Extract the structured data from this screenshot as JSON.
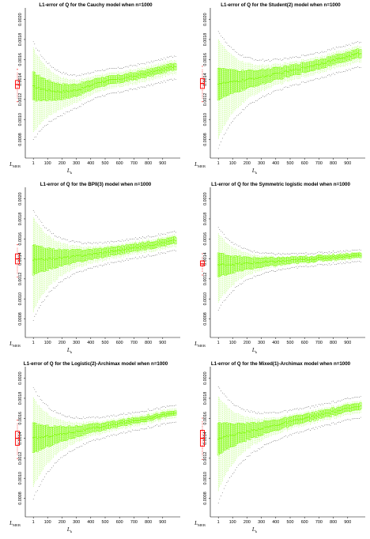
{
  "chart_data": [
    {
      "type": "boxplot",
      "title": "L1-error of Q for the Cauchy model when n=1000",
      "xlabel_main": "L",
      "xlabel_sub": "k",
      "ref_label_main": "L",
      "ref_label_sub": "MEB",
      "ylim": [
        0.00063,
        0.0021
      ],
      "yticks": [
        "0.0008",
        "0.0010",
        "0.0012",
        "0.0014",
        "0.0016",
        "0.0018",
        "0.0020"
      ],
      "yticks_values": [
        0.0008,
        0.001,
        0.0012,
        0.0014,
        0.0016,
        0.0018,
        0.002
      ],
      "xticks": [
        "1",
        "100",
        "200",
        "300",
        "400",
        "500",
        "600",
        "700",
        "800",
        "900"
      ],
      "ref_box": {
        "median": 0.00135,
        "q1": 0.00131,
        "q3": 0.00139,
        "low": 0.00121,
        "high": 0.00147
      },
      "series": {
        "median_start": 0.00133,
        "median_end": 0.00154,
        "curve": 2.0,
        "iqr_start": 0.00028,
        "iqr_end": 6e-05,
        "wh_start": 0.00085,
        "wh_end": 0.00014,
        "out_start": 6e-05,
        "out_end": 4e-05,
        "shape": "dip"
      }
    },
    {
      "type": "boxplot",
      "title": "L1-error of Q for the Student(2) model when n=1000",
      "xlabel_main": "L",
      "xlabel_sub": "k",
      "ref_label_main": "L",
      "ref_label_sub": "MEB",
      "ylim": [
        0.00063,
        0.0021
      ],
      "yticks": [
        "0.0008",
        "0.0010",
        "0.0012",
        "0.0014",
        "0.0016",
        "0.0018",
        "0.0020"
      ],
      "yticks_values": [
        0.0008,
        0.001,
        0.0012,
        0.0014,
        0.0016,
        0.0018,
        0.002
      ],
      "xticks": [
        "1",
        "100",
        "200",
        "300",
        "400",
        "500",
        "600",
        "700",
        "800",
        "900"
      ],
      "ref_box": {
        "median": 0.00136,
        "q1": 0.00131,
        "q3": 0.00141,
        "low": 0.00121,
        "high": 0.0015
      },
      "series": {
        "median_start": 0.00136,
        "median_end": 0.00167,
        "curve": 1.3,
        "iqr_start": 0.00032,
        "iqr_end": 8e-05,
        "wh_start": 0.001,
        "wh_end": 0.00016,
        "out_start": 8e-05,
        "out_end": 4e-05,
        "shape": "rise"
      }
    },
    {
      "type": "boxplot",
      "title": "L1-error of Q for the BPII(3) model when n=1000",
      "xlabel_main": "L",
      "xlabel_sub": "k",
      "ref_label_main": "L",
      "ref_label_sub": "MEB",
      "ylim": [
        0.00063,
        0.0021
      ],
      "yticks": [
        "0.0008",
        "0.0010",
        "0.0012",
        "0.0014",
        "0.0016",
        "0.0018",
        "0.0020"
      ],
      "yticks_values": [
        0.0008,
        0.001,
        0.0012,
        0.0014,
        0.0016,
        0.0018,
        0.002
      ],
      "xticks": [
        "1",
        "100",
        "200",
        "300",
        "400",
        "500",
        "600",
        "700",
        "800",
        "900"
      ],
      "ref_box": {
        "median": 0.0014,
        "q1": 0.00135,
        "q3": 0.00145,
        "low": 0.00125,
        "high": 0.00151
      },
      "series": {
        "median_start": 0.00139,
        "median_end": 0.00159,
        "curve": 1.4,
        "iqr_start": 0.0003,
        "iqr_end": 6e-05,
        "wh_start": 0.00095,
        "wh_end": 0.00012,
        "out_start": 7e-05,
        "out_end": 3e-05,
        "shape": "rise"
      }
    },
    {
      "type": "boxplot",
      "title": "L1-error of Q for the Symmetric logistic model when n=1000",
      "xlabel_main": "L",
      "xlabel_sub": "k",
      "ref_label_main": "L",
      "ref_label_sub": "MEB",
      "ylim": [
        0.00063,
        0.0021
      ],
      "yticks": [
        "0.0008",
        "0.0010",
        "0.0012",
        "0.0014",
        "0.0016",
        "0.0018",
        "0.0020"
      ],
      "yticks_values": [
        0.0008,
        0.001,
        0.0012,
        0.0014,
        0.0016,
        0.0018,
        0.002
      ],
      "xticks": [
        "1",
        "100",
        "200",
        "300",
        "400",
        "500",
        "600",
        "700",
        "800",
        "900"
      ],
      "ref_box": {
        "median": 0.00135,
        "q1": 0.00133,
        "q3": 0.00138,
        "low": 0.00127,
        "high": 0.00142
      },
      "series": {
        "median_start": 0.00134,
        "median_end": 0.00144,
        "curve": 1.2,
        "iqr_start": 0.00024,
        "iqr_end": 4e-05,
        "wh_start": 0.0007,
        "wh_end": 7e-05,
        "out_start": 6e-05,
        "out_end": 2e-05,
        "shape": "rise"
      }
    },
    {
      "type": "boxplot",
      "title": "L1-error of Q for the Logistic(2)-Archimax model when n=1000",
      "xlabel_main": "L",
      "xlabel_sub": "k",
      "ref_label_main": "L",
      "ref_label_sub": "MEB",
      "ylim": [
        0.00063,
        0.0021
      ],
      "yticks": [
        "0.0008",
        "0.0010",
        "0.0012",
        "0.0014",
        "0.0016",
        "0.0018",
        "0.0020"
      ],
      "yticks_values": [
        0.0008,
        0.001,
        0.0012,
        0.0014,
        0.0016,
        0.0018,
        0.002
      ],
      "xticks": [
        "1",
        "100",
        "200",
        "300",
        "400",
        "500",
        "600",
        "700",
        "800",
        "900"
      ],
      "ref_box": {
        "median": 0.0014,
        "q1": 0.00133,
        "q3": 0.00147,
        "low": 0.00123,
        "high": 0.00155
      },
      "series": {
        "median_start": 0.0014,
        "median_end": 0.00166,
        "curve": 1.1,
        "iqr_start": 0.0003,
        "iqr_end": 4e-05,
        "wh_start": 0.0009,
        "wh_end": 0.0001,
        "out_start": 0.0001,
        "out_end": 3e-05,
        "shape": "rise"
      }
    },
    {
      "type": "boxplot",
      "title": "L1-error of Q for the Mixed(1)-Archimax model when n=1000",
      "xlabel_main": "L",
      "xlabel_sub": "k",
      "ref_label_main": "L",
      "ref_label_sub": "MEB",
      "ylim": [
        0.00063,
        0.0021
      ],
      "yticks": [
        "0.0008",
        "0.0010",
        "0.0012",
        "0.0014",
        "0.0016",
        "0.0018",
        "0.0020"
      ],
      "yticks_values": [
        0.0008,
        0.001,
        0.0012,
        0.0014,
        0.0016,
        0.0018,
        0.002
      ],
      "xticks": [
        "1",
        "100",
        "200",
        "300",
        "400",
        "500",
        "600",
        "700",
        "800",
        "900"
      ],
      "ref_box": {
        "median": 0.0014,
        "q1": 0.00132,
        "q3": 0.00148,
        "low": 0.00122,
        "high": 0.00157
      },
      "series": {
        "median_start": 0.0014,
        "median_end": 0.00173,
        "curve": 1.0,
        "iqr_start": 0.00032,
        "iqr_end": 6e-05,
        "wh_start": 0.00095,
        "wh_end": 0.00012,
        "out_start": 0.0001,
        "out_end": 4e-05,
        "shape": "rise"
      }
    }
  ],
  "colors": {
    "box": "#7CFC00",
    "median": "#000000",
    "outlier": "#000000",
    "ref": "#FF0000",
    "axis": "#000000"
  }
}
